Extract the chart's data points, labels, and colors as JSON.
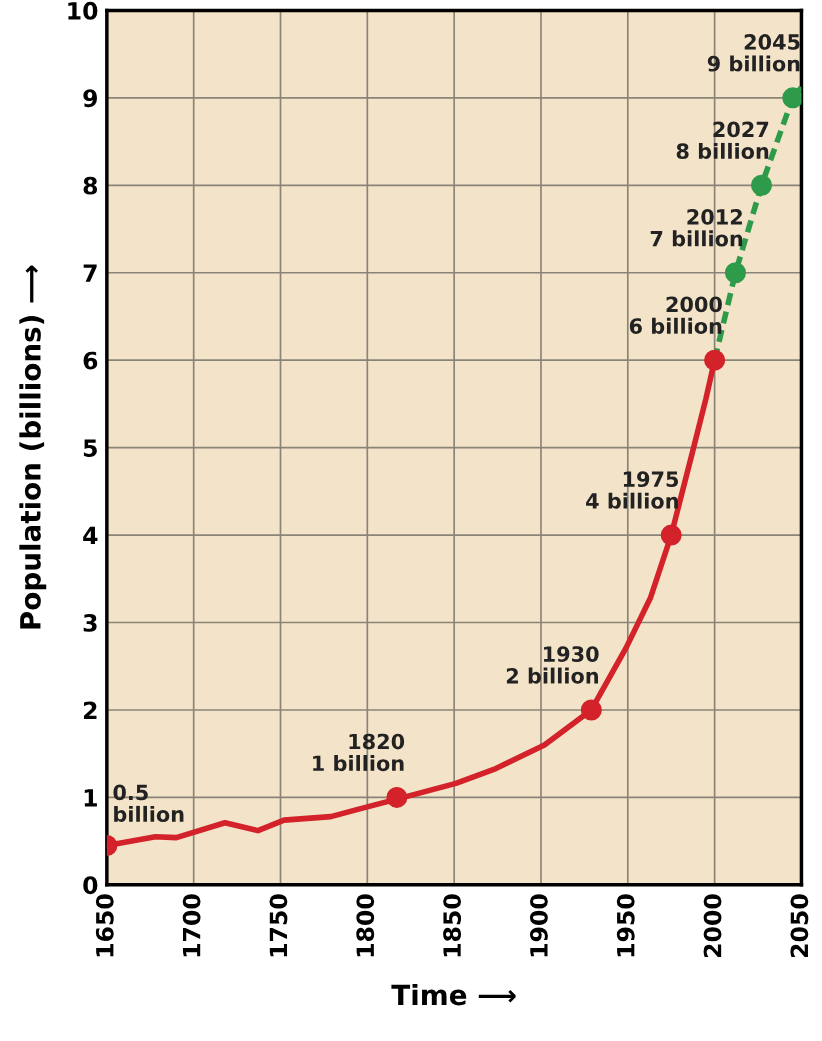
{
  "chart_data": {
    "type": "line",
    "xlabel": "Time ⟶",
    "ylabel": "Population (billions) ⟶",
    "xlim": [
      1650,
      2050
    ],
    "xticks": [
      1650,
      1700,
      1750,
      1800,
      1850,
      1900,
      1950,
      2000,
      2050
    ],
    "ylim": [
      0,
      10
    ],
    "yticks": [
      0,
      1,
      2,
      3,
      4,
      5,
      6,
      7,
      8,
      9,
      10
    ],
    "grid": true,
    "series": [
      {
        "color": "#d3222a",
        "line_style": "solid",
        "marker": "none",
        "x": [
          1650,
          1678,
          1690,
          1718,
          1737,
          1752,
          1779,
          1794,
          1817,
          1851,
          1874,
          1902,
          1929,
          1949,
          1963,
          1975,
          1987,
          1995,
          2000
        ],
        "values": [
          0.45,
          0.55,
          0.54,
          0.71,
          0.62,
          0.74,
          0.78,
          0.86,
          0.98,
          1.16,
          1.33,
          1.6,
          2.0,
          2.71,
          3.28,
          4.0,
          4.93,
          5.56,
          6.0
        ]
      },
      {
        "type": "scatter",
        "color": "#d3222a",
        "marker": "circle",
        "x": [
          1650,
          1817,
          1929,
          1975,
          2000
        ],
        "values": [
          0.45,
          1.0,
          2.0,
          4.0,
          6.0
        ]
      },
      {
        "color": "#2e9b4a",
        "line_style": "dashed",
        "marker": "none",
        "x": [
          2000,
          2012,
          2027,
          2045,
          2050
        ],
        "values": [
          6.0,
          7.0,
          8.0,
          9.0,
          9.12
        ]
      },
      {
        "type": "scatter",
        "color": "#2e9b4a",
        "marker": "circle",
        "x": [
          2012,
          2027,
          2045
        ],
        "values": [
          7.0,
          8.0,
          9.0
        ]
      }
    ],
    "annotations": [
      {
        "text": "0.5\nbillion",
        "x": 1650,
        "y": 0.45
      },
      {
        "text": "1820\n1 billion",
        "x": 1817,
        "y": 1.0
      },
      {
        "text": "1930\n2 billion",
        "x": 1929,
        "y": 2.0
      },
      {
        "text": "1975\n4 billion",
        "x": 1975,
        "y": 4.0
      },
      {
        "text": "2000\n6 billion",
        "x": 2000,
        "y": 6.0
      },
      {
        "text": "2012\n7 billion",
        "x": 2012,
        "y": 7.0
      },
      {
        "text": "2027\n8 billion",
        "x": 2027,
        "y": 8.0
      },
      {
        "text": "2045\n9 billion",
        "x": 2045,
        "y": 9.0
      }
    ]
  }
}
